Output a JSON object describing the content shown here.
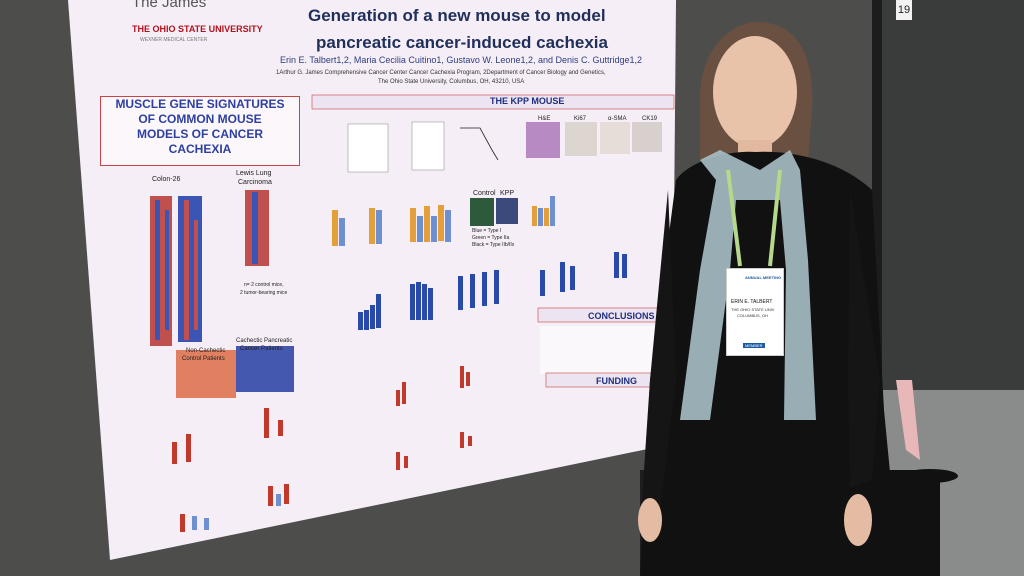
{
  "poster": {
    "institution": "The James",
    "university": "THE OHIO STATE UNIVERSITY",
    "university_sub": "WEXNER MEDICAL CENTER",
    "title_line1": "Generation of a new mouse to model",
    "title_line2": "pancreatic cancer-induced cachexia",
    "authors": "Erin E. Talbert1,2, Maria Cecilia Cuitino1, Gustavo W. Leone1,2, and Denis C. Guttridge1,2",
    "affiliation_line1": "1Arthur G. James Comprehensive Cancer Center Cancer Cachexia Program, 2Department of Cancer Biology and Genetics,",
    "affiliation_line2": "The Ohio State University, Columbus, OH, 43210, USA",
    "side_header": [
      "MUSCLE GENE SIGNATURES",
      "OF COMMON MOUSE",
      "MODELS OF CANCER",
      "CACHEXIA"
    ],
    "kpp_header": "THE KPP MOUSE",
    "labels": {
      "colon": "Colon-26",
      "lewis1": "Lewis Lung",
      "lewis2": "Carcinoma",
      "noncachectic1": "Non-Cachectic",
      "noncachectic2": "Control Patients",
      "cachectic1": "Cachectic Pancreatic",
      "cachectic2": "Cancer Patients",
      "control": "Control",
      "kpp": "KPP",
      "he": "H&E",
      "ki67": "Ki67",
      "asma": "α-SMA",
      "ck19": "CK19",
      "legend_blue": "Blue = Type I",
      "legend_green": "Green = Type IIa",
      "legend_black": "Black = Type IIb/IIx",
      "mice_note1": "n= 2 control mice,",
      "mice_note2": "2 tumor-bearing mice"
    },
    "conclusions_header": "CONCLUSIONS",
    "funding_header": "FUNDING"
  },
  "booth_number": "19",
  "name_badge": {
    "meeting": "ANNUAL MEETING",
    "name": "ERIN E. TALBERT",
    "institution": "THE OHIO STATE UNIV",
    "city": "COLUMBUS, OH",
    "role": "MEMBER"
  }
}
